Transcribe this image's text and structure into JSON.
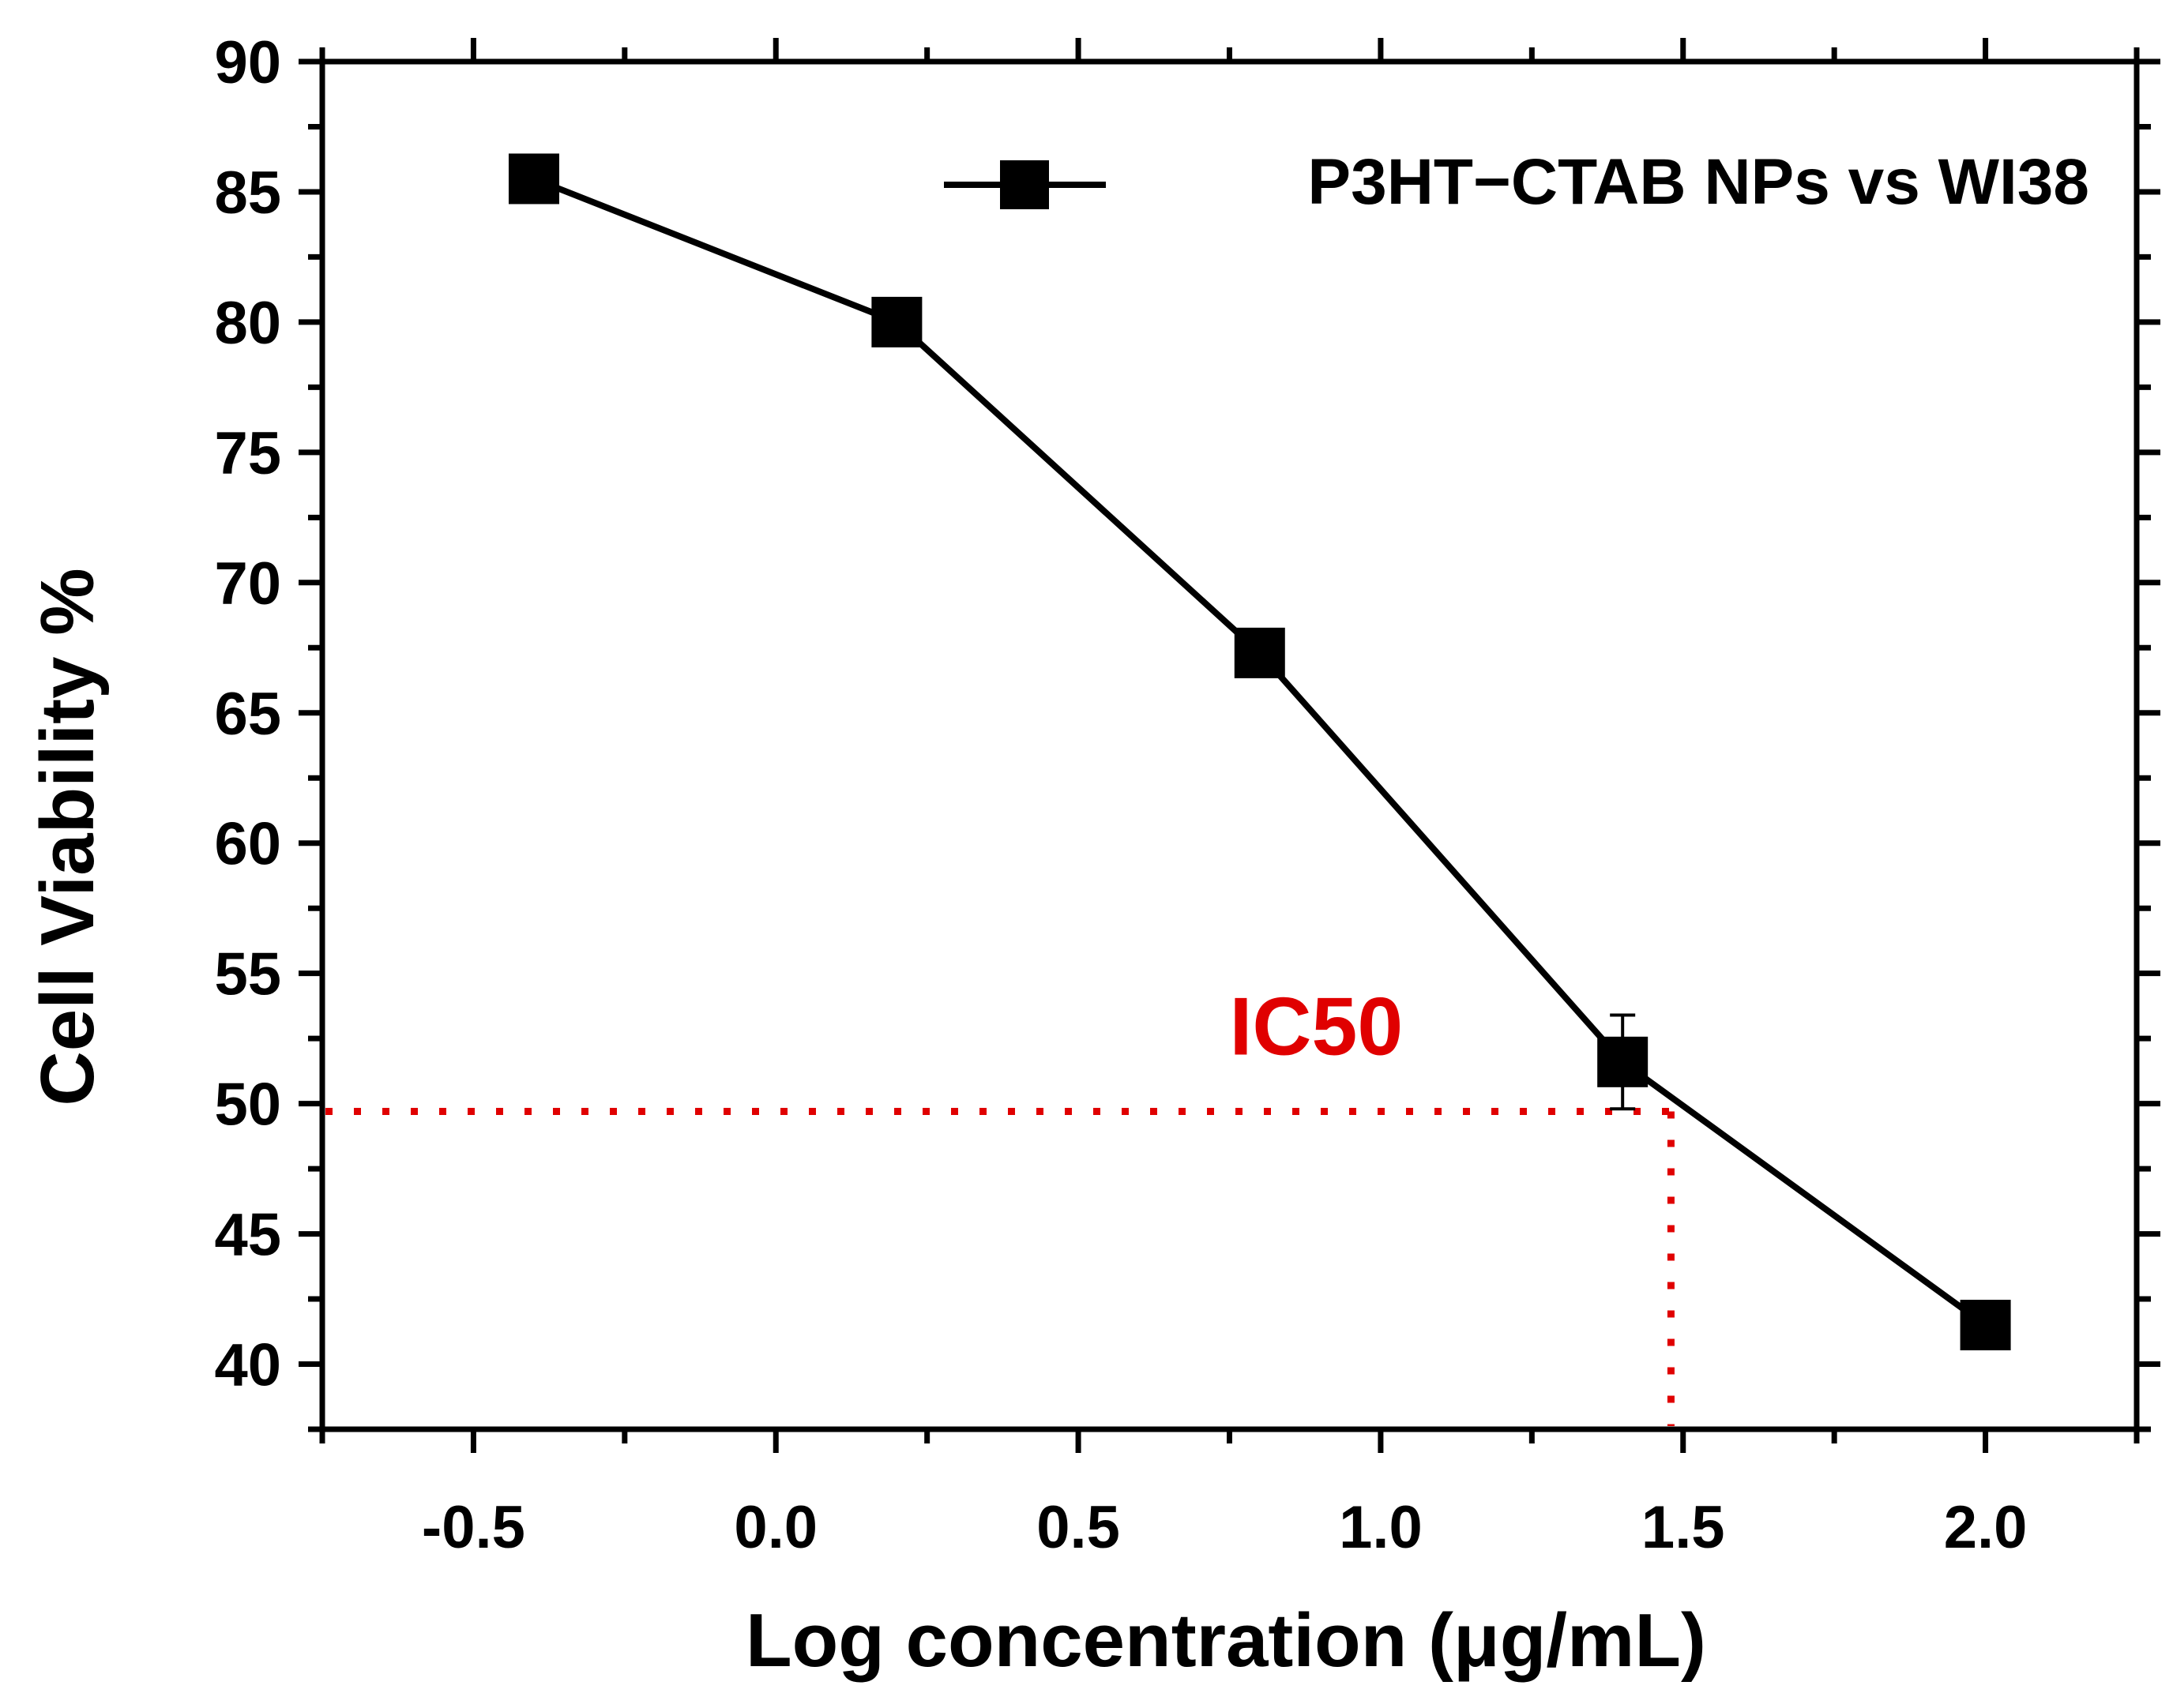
{
  "chart_data": {
    "type": "line",
    "title": "",
    "xlabel": "Log concentration (μg/mL)",
    "ylabel": "Cell Viability %",
    "xlim": [
      -0.75,
      2.25
    ],
    "ylim": [
      37.5,
      90
    ],
    "x_ticks": [
      -0.5,
      0.0,
      0.5,
      1.0,
      1.5,
      2.0
    ],
    "x_tick_labels": [
      "-0.5",
      "0.0",
      "0.5",
      "1.0",
      "1.5",
      "2.0"
    ],
    "y_ticks": [
      40,
      45,
      50,
      55,
      60,
      65,
      70,
      75,
      80,
      85,
      90
    ],
    "y_tick_labels": [
      "40",
      "45",
      "50",
      "55",
      "60",
      "65",
      "70",
      "75",
      "80",
      "85",
      "90"
    ],
    "grid": false,
    "legend_position": "top-right",
    "series": [
      {
        "name": "P3HT−CTAB NPs vs WI38",
        "x": [
          -0.4,
          0.2,
          0.8,
          1.4,
          2.0
        ],
        "y": [
          85.5,
          80.0,
          67.3,
          51.6,
          41.5
        ],
        "error": [
          0,
          0,
          0,
          1.8,
          0
        ],
        "color": "#000000",
        "marker": "square"
      }
    ],
    "annotations": [
      {
        "text": "IC50",
        "x": 0.75,
        "y": 53.0,
        "color": "#e00000"
      }
    ],
    "ic50_guide": {
      "x": 1.48,
      "y": 49.7,
      "color": "#e00000"
    }
  }
}
